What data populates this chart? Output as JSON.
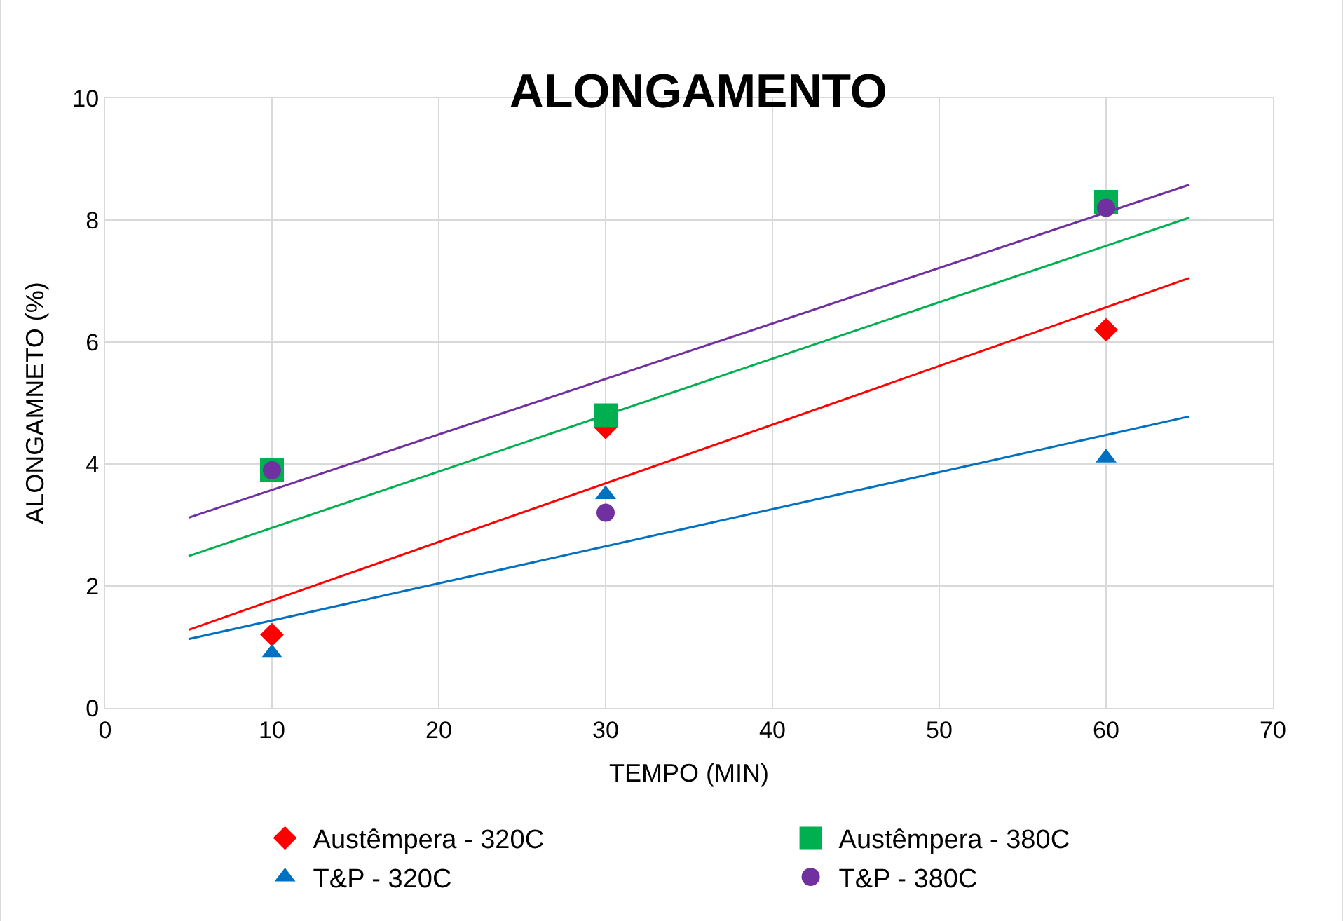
{
  "chart_data": {
    "type": "scatter",
    "title": "ALONGAMENTO",
    "xlabel": "TEMPO (MIN)",
    "ylabel": "ALONGAMNETO (%)",
    "xlim": [
      0,
      70
    ],
    "xticks": [
      0,
      10,
      20,
      30,
      40,
      50,
      60,
      70
    ],
    "ylim": [
      0,
      10
    ],
    "yticks": [
      0,
      2,
      4,
      6,
      8,
      10
    ],
    "grid": true,
    "legend": "bottom",
    "series": [
      {
        "name": "Austêmpera - 320C",
        "color": "#ff0000",
        "marker": "diamond",
        "x": [
          10,
          30,
          60
        ],
        "values": [
          1.2,
          4.6,
          6.2
        ]
      },
      {
        "name": "Austêmpera - 380C",
        "color": "#00b050",
        "marker": "square",
        "x": [
          10,
          30,
          60
        ],
        "values": [
          3.9,
          4.8,
          8.3
        ]
      },
      {
        "name": "T&P - 320C",
        "color": "#0070c0",
        "marker": "triangle",
        "x": [
          10,
          30,
          60
        ],
        "values": [
          0.9,
          3.5,
          4.1
        ]
      },
      {
        "name": "T&P - 380C",
        "color": "#7030a0",
        "marker": "circle",
        "x": [
          10,
          30,
          60
        ],
        "values": [
          3.9,
          3.2,
          8.2
        ]
      },
      {
        "type": "line",
        "color": "#ff0000",
        "x": [
          5,
          65
        ],
        "values": [
          1.28,
          7.05
        ]
      },
      {
        "type": "line",
        "color": "#00b050",
        "x": [
          5,
          65
        ],
        "values": [
          2.49,
          8.04
        ]
      },
      {
        "type": "line",
        "color": "#0070c0",
        "x": [
          5,
          65
        ],
        "values": [
          1.13,
          4.78
        ]
      },
      {
        "type": "line",
        "color": "#7030a0",
        "x": [
          5,
          65
        ],
        "values": [
          3.12,
          8.58
        ]
      }
    ]
  }
}
